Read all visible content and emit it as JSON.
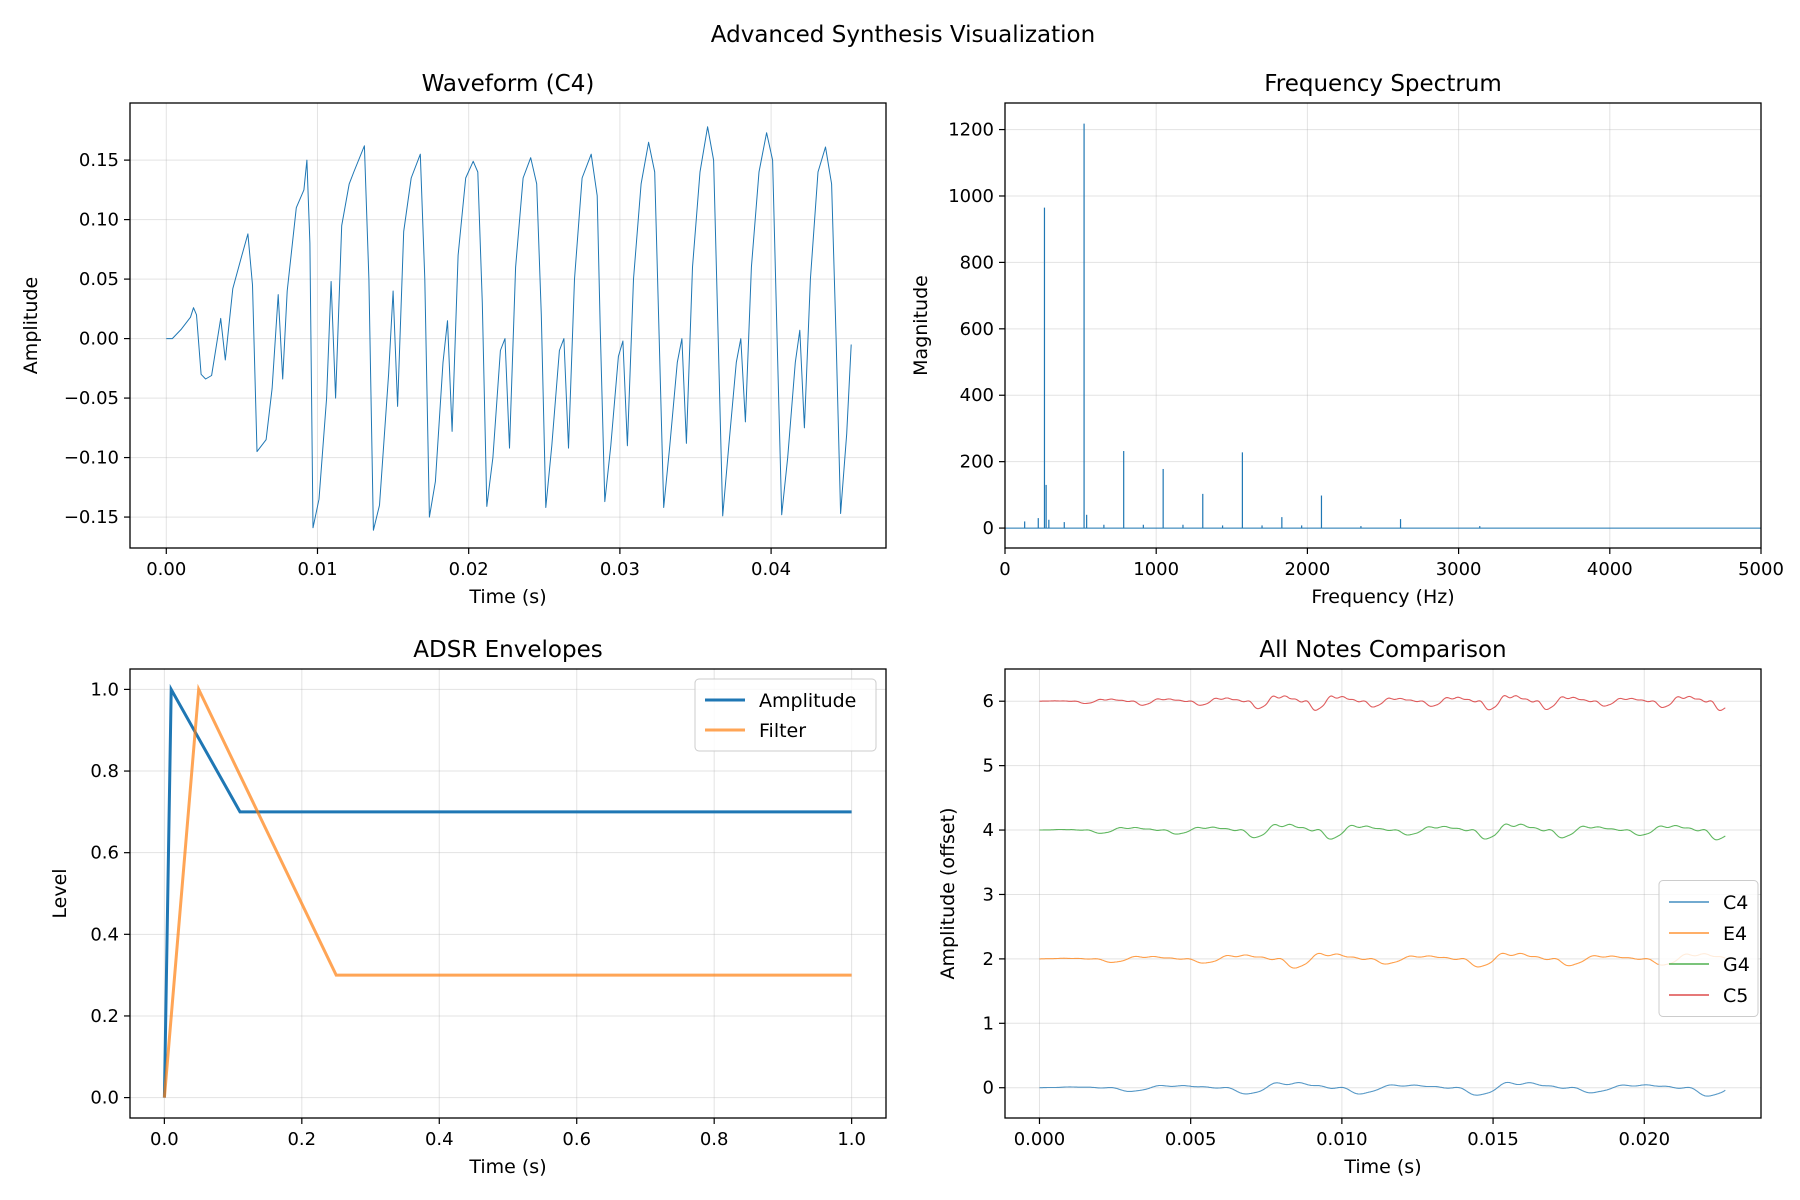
{
  "figure": {
    "title": "Advanced Synthesis Visualization"
  },
  "colors": {
    "blue": "#1f77b4",
    "orange": "#ff7f0e",
    "green": "#2ca02c",
    "red": "#d62728"
  },
  "chart_data": [
    {
      "id": "waveform",
      "type": "line",
      "title": "Waveform (C4)",
      "xlabel": "Time (s)",
      "ylabel": "Amplitude",
      "xlim": [
        -0.0024,
        0.0476
      ],
      "ylim": [
        -0.176,
        0.198
      ],
      "xticks": [
        0,
        0.01,
        0.02,
        0.03,
        0.04
      ],
      "xtick_labels": [
        "0.00",
        "0.01",
        "0.02",
        "0.03",
        "0.04"
      ],
      "yticks": [
        -0.15,
        -0.1,
        -0.05,
        0.0,
        0.05,
        0.1,
        0.15
      ],
      "ytick_labels": [
        "−0.15",
        "−0.10",
        "−0.05",
        "0.00",
        "0.05",
        "0.10",
        "0.15"
      ],
      "grid": true,
      "series": [
        {
          "color": "#1f77b4",
          "points": [
            [
              0.0,
              0.0
            ],
            [
              0.0004,
              0.0
            ],
            [
              0.001,
              0.008
            ],
            [
              0.0016,
              0.018
            ],
            [
              0.0018,
              0.026
            ],
            [
              0.002,
              0.02
            ],
            [
              0.0023,
              -0.03
            ],
            [
              0.0026,
              -0.034
            ],
            [
              0.003,
              -0.031
            ],
            [
              0.0036,
              0.017
            ],
            [
              0.0039,
              -0.018
            ],
            [
              0.0044,
              0.042
            ],
            [
              0.005,
              0.07
            ],
            [
              0.0054,
              0.088
            ],
            [
              0.0057,
              0.045
            ],
            [
              0.006,
              -0.095
            ],
            [
              0.0066,
              -0.085
            ],
            [
              0.007,
              -0.042
            ],
            [
              0.0074,
              0.037
            ],
            [
              0.0077,
              -0.034
            ],
            [
              0.008,
              0.04
            ],
            [
              0.0086,
              0.11
            ],
            [
              0.0091,
              0.125
            ],
            [
              0.0093,
              0.15
            ],
            [
              0.0095,
              0.08
            ],
            [
              0.0097,
              -0.159
            ],
            [
              0.0101,
              -0.135
            ],
            [
              0.0106,
              -0.05
            ],
            [
              0.0109,
              0.048
            ],
            [
              0.0112,
              -0.05
            ],
            [
              0.0116,
              0.095
            ],
            [
              0.0121,
              0.13
            ],
            [
              0.0124,
              0.14
            ],
            [
              0.0131,
              0.162
            ],
            [
              0.0134,
              0.05
            ],
            [
              0.0137,
              -0.161
            ],
            [
              0.0141,
              -0.14
            ],
            [
              0.0147,
              -0.03
            ],
            [
              0.015,
              0.04
            ],
            [
              0.0153,
              -0.057
            ],
            [
              0.0157,
              0.09
            ],
            [
              0.0162,
              0.135
            ],
            [
              0.0168,
              0.155
            ],
            [
              0.0171,
              0.05
            ],
            [
              0.0174,
              -0.15
            ],
            [
              0.0178,
              -0.12
            ],
            [
              0.0183,
              -0.02
            ],
            [
              0.0186,
              0.015
            ],
            [
              0.0189,
              -0.078
            ],
            [
              0.0193,
              0.07
            ],
            [
              0.0198,
              0.135
            ],
            [
              0.0203,
              0.149
            ],
            [
              0.0206,
              0.14
            ],
            [
              0.0209,
              0.03
            ],
            [
              0.0212,
              -0.141
            ],
            [
              0.0216,
              -0.1
            ],
            [
              0.0221,
              -0.01
            ],
            [
              0.0224,
              0.0
            ],
            [
              0.0227,
              -0.092
            ],
            [
              0.0231,
              0.06
            ],
            [
              0.0236,
              0.135
            ],
            [
              0.0241,
              0.152
            ],
            [
              0.0245,
              0.13
            ],
            [
              0.0248,
              0.02
            ],
            [
              0.0251,
              -0.142
            ],
            [
              0.0255,
              -0.09
            ],
            [
              0.026,
              -0.01
            ],
            [
              0.0263,
              0.0
            ],
            [
              0.0266,
              -0.092
            ],
            [
              0.027,
              0.05
            ],
            [
              0.0275,
              0.135
            ],
            [
              0.0281,
              0.155
            ],
            [
              0.0285,
              0.12
            ],
            [
              0.0287,
              0.01
            ],
            [
              0.029,
              -0.137
            ],
            [
              0.0294,
              -0.09
            ],
            [
              0.0299,
              -0.015
            ],
            [
              0.0302,
              -0.002
            ],
            [
              0.0305,
              -0.09
            ],
            [
              0.0309,
              0.05
            ],
            [
              0.0314,
              0.13
            ],
            [
              0.0319,
              0.165
            ],
            [
              0.0323,
              0.14
            ],
            [
              0.0326,
              0.0
            ],
            [
              0.0329,
              -0.142
            ],
            [
              0.0333,
              -0.09
            ],
            [
              0.0338,
              -0.02
            ],
            [
              0.0341,
              0.0
            ],
            [
              0.0344,
              -0.088
            ],
            [
              0.0348,
              0.06
            ],
            [
              0.0353,
              0.14
            ],
            [
              0.0358,
              0.178
            ],
            [
              0.0362,
              0.15
            ],
            [
              0.0365,
              0.0
            ],
            [
              0.0368,
              -0.149
            ],
            [
              0.0372,
              -0.09
            ],
            [
              0.0377,
              -0.02
            ],
            [
              0.038,
              0.0
            ],
            [
              0.0383,
              -0.07
            ],
            [
              0.0387,
              0.06
            ],
            [
              0.0392,
              0.14
            ],
            [
              0.0397,
              0.173
            ],
            [
              0.0401,
              0.15
            ],
            [
              0.0404,
              0.0
            ],
            [
              0.0407,
              -0.148
            ],
            [
              0.0411,
              -0.1
            ],
            [
              0.0416,
              -0.02
            ],
            [
              0.0419,
              0.007
            ],
            [
              0.0422,
              -0.075
            ],
            [
              0.0426,
              0.05
            ],
            [
              0.0431,
              0.14
            ],
            [
              0.0436,
              0.161
            ],
            [
              0.044,
              0.13
            ],
            [
              0.0443,
              0.0
            ],
            [
              0.0446,
              -0.147
            ],
            [
              0.045,
              -0.08
            ],
            [
              0.0453,
              -0.005
            ]
          ]
        }
      ]
    },
    {
      "id": "spectrum",
      "type": "line",
      "title": "Frequency Spectrum",
      "xlabel": "Frequency (Hz)",
      "ylabel": "Magnitude",
      "xlim": [
        0,
        5000
      ],
      "ylim": [
        -60,
        1280
      ],
      "xticks": [
        0,
        1000,
        2000,
        3000,
        4000,
        5000
      ],
      "xtick_labels": [
        "0",
        "1000",
        "2000",
        "3000",
        "4000",
        "5000"
      ],
      "yticks": [
        0,
        200,
        400,
        600,
        800,
        1000,
        1200
      ],
      "ytick_labels": [
        "0",
        "200",
        "400",
        "600",
        "800",
        "1000",
        "1200"
      ],
      "grid": true,
      "series": [
        {
          "color": "#1f77b4",
          "baseline": 0,
          "peaks": [
            [
              130,
              20
            ],
            [
              220,
              30
            ],
            [
              261,
              965
            ],
            [
              272,
              130
            ],
            [
              290,
              25
            ],
            [
              392,
              18
            ],
            [
              523,
              1218
            ],
            [
              540,
              40
            ],
            [
              654,
              10
            ],
            [
              785,
              232
            ],
            [
              915,
              10
            ],
            [
              1046,
              178
            ],
            [
              1177,
              10
            ],
            [
              1308,
              103
            ],
            [
              1439,
              8
            ],
            [
              1570,
              228
            ],
            [
              1700,
              8
            ],
            [
              1831,
              33
            ],
            [
              1962,
              8
            ],
            [
              2093,
              98
            ],
            [
              2354,
              6
            ],
            [
              2616,
              27
            ],
            [
              3140,
              6
            ]
          ]
        }
      ]
    },
    {
      "id": "adsr",
      "type": "line",
      "title": "ADSR Envelopes",
      "xlabel": "Time (s)",
      "ylabel": "Level",
      "xlim": [
        -0.05,
        1.05
      ],
      "ylim": [
        -0.05,
        1.05
      ],
      "xticks": [
        0,
        0.2,
        0.4,
        0.6,
        0.8,
        1.0
      ],
      "xtick_labels": [
        "0.0",
        "0.2",
        "0.4",
        "0.6",
        "0.8",
        "1.0"
      ],
      "yticks": [
        0,
        0.2,
        0.4,
        0.6,
        0.8,
        1.0
      ],
      "ytick_labels": [
        "0.0",
        "0.2",
        "0.4",
        "0.6",
        "0.8",
        "1.0"
      ],
      "grid": true,
      "legend": "upper-right",
      "series": [
        {
          "name": "Amplitude",
          "color": "#1f77b4",
          "points": [
            [
              0,
              0
            ],
            [
              0.01,
              1.0
            ],
            [
              0.11,
              0.7
            ],
            [
              1.0,
              0.7
            ]
          ]
        },
        {
          "name": "Filter",
          "color": "#ff7f0e",
          "points": [
            [
              0,
              0
            ],
            [
              0.05,
              1.0
            ],
            [
              0.25,
              0.3
            ],
            [
              1.0,
              0.3
            ]
          ]
        }
      ]
    },
    {
      "id": "notes",
      "type": "line",
      "title": "All Notes Comparison",
      "xlabel": "Time (s)",
      "ylabel": "Amplitude (offset)",
      "xlim": [
        -0.00114,
        0.02386
      ],
      "ylim": [
        -0.47,
        6.5
      ],
      "xticks": [
        0,
        0.005,
        0.01,
        0.015,
        0.02
      ],
      "xtick_labels": [
        "0.000",
        "0.005",
        "0.010",
        "0.015",
        "0.020"
      ],
      "yticks": [
        0,
        1,
        2,
        3,
        4,
        5,
        6
      ],
      "ytick_labels": [
        "0",
        "1",
        "2",
        "3",
        "4",
        "5",
        "6"
      ],
      "grid": true,
      "legend": "center-right",
      "series": [
        {
          "name": "C4",
          "color": "#1f77b4",
          "offset": 0,
          "period": 0.003822,
          "amp": 0.15
        },
        {
          "name": "E4",
          "color": "#ff7f0e",
          "offset": 2,
          "period": 0.003034,
          "amp": 0.16
        },
        {
          "name": "G4",
          "color": "#2ca02c",
          "offset": 4,
          "period": 0.002551,
          "amp": 0.17
        },
        {
          "name": "C5",
          "color": "#d62728",
          "offset": 6,
          "period": 0.001911,
          "amp": 0.16
        }
      ]
    }
  ]
}
